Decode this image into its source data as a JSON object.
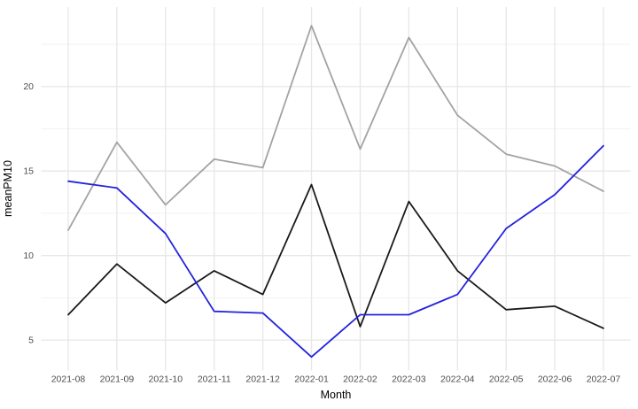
{
  "chart_data": {
    "type": "line",
    "title": "",
    "xlabel": "Month",
    "ylabel": "meanPM10",
    "categories": [
      "2021-08",
      "2021-09",
      "2021-10",
      "2021-11",
      "2021-12",
      "2022-01",
      "2022-02",
      "2022-03",
      "2022-04",
      "2022-05",
      "2022-06",
      "2022-07"
    ],
    "series": [
      {
        "name": "grey-line",
        "color": "#A3A3A3",
        "values": [
          11.5,
          16.7,
          13.0,
          15.7,
          15.2,
          23.6,
          16.3,
          22.9,
          18.3,
          16.0,
          15.3,
          13.8
        ]
      },
      {
        "name": "black-line",
        "color": "#1A1A1A",
        "values": [
          6.5,
          9.5,
          7.2,
          9.1,
          7.7,
          14.2,
          5.8,
          13.2,
          9.1,
          6.8,
          7.0,
          5.7
        ]
      },
      {
        "name": "blue-line",
        "color": "#2222DD",
        "values": [
          14.4,
          14.0,
          11.3,
          6.7,
          6.6,
          4.0,
          6.5,
          6.5,
          7.7,
          11.6,
          13.6,
          16.5
        ]
      }
    ],
    "y_major_ticks": [
      5,
      10,
      15,
      20
    ],
    "y_minor_ticks": [
      7.5,
      12.5,
      17.5,
      22.5
    ],
    "ylim": [
      3.2,
      24.7
    ],
    "grid": true,
    "legend_position": "none"
  },
  "style": {
    "background": "#FFFFFF",
    "grid_major_color": "#E7E7E7",
    "grid_minor_color": "#F2F2F2",
    "tick_label_color": "#4D4D4D",
    "axis_title_color": "#000000"
  }
}
